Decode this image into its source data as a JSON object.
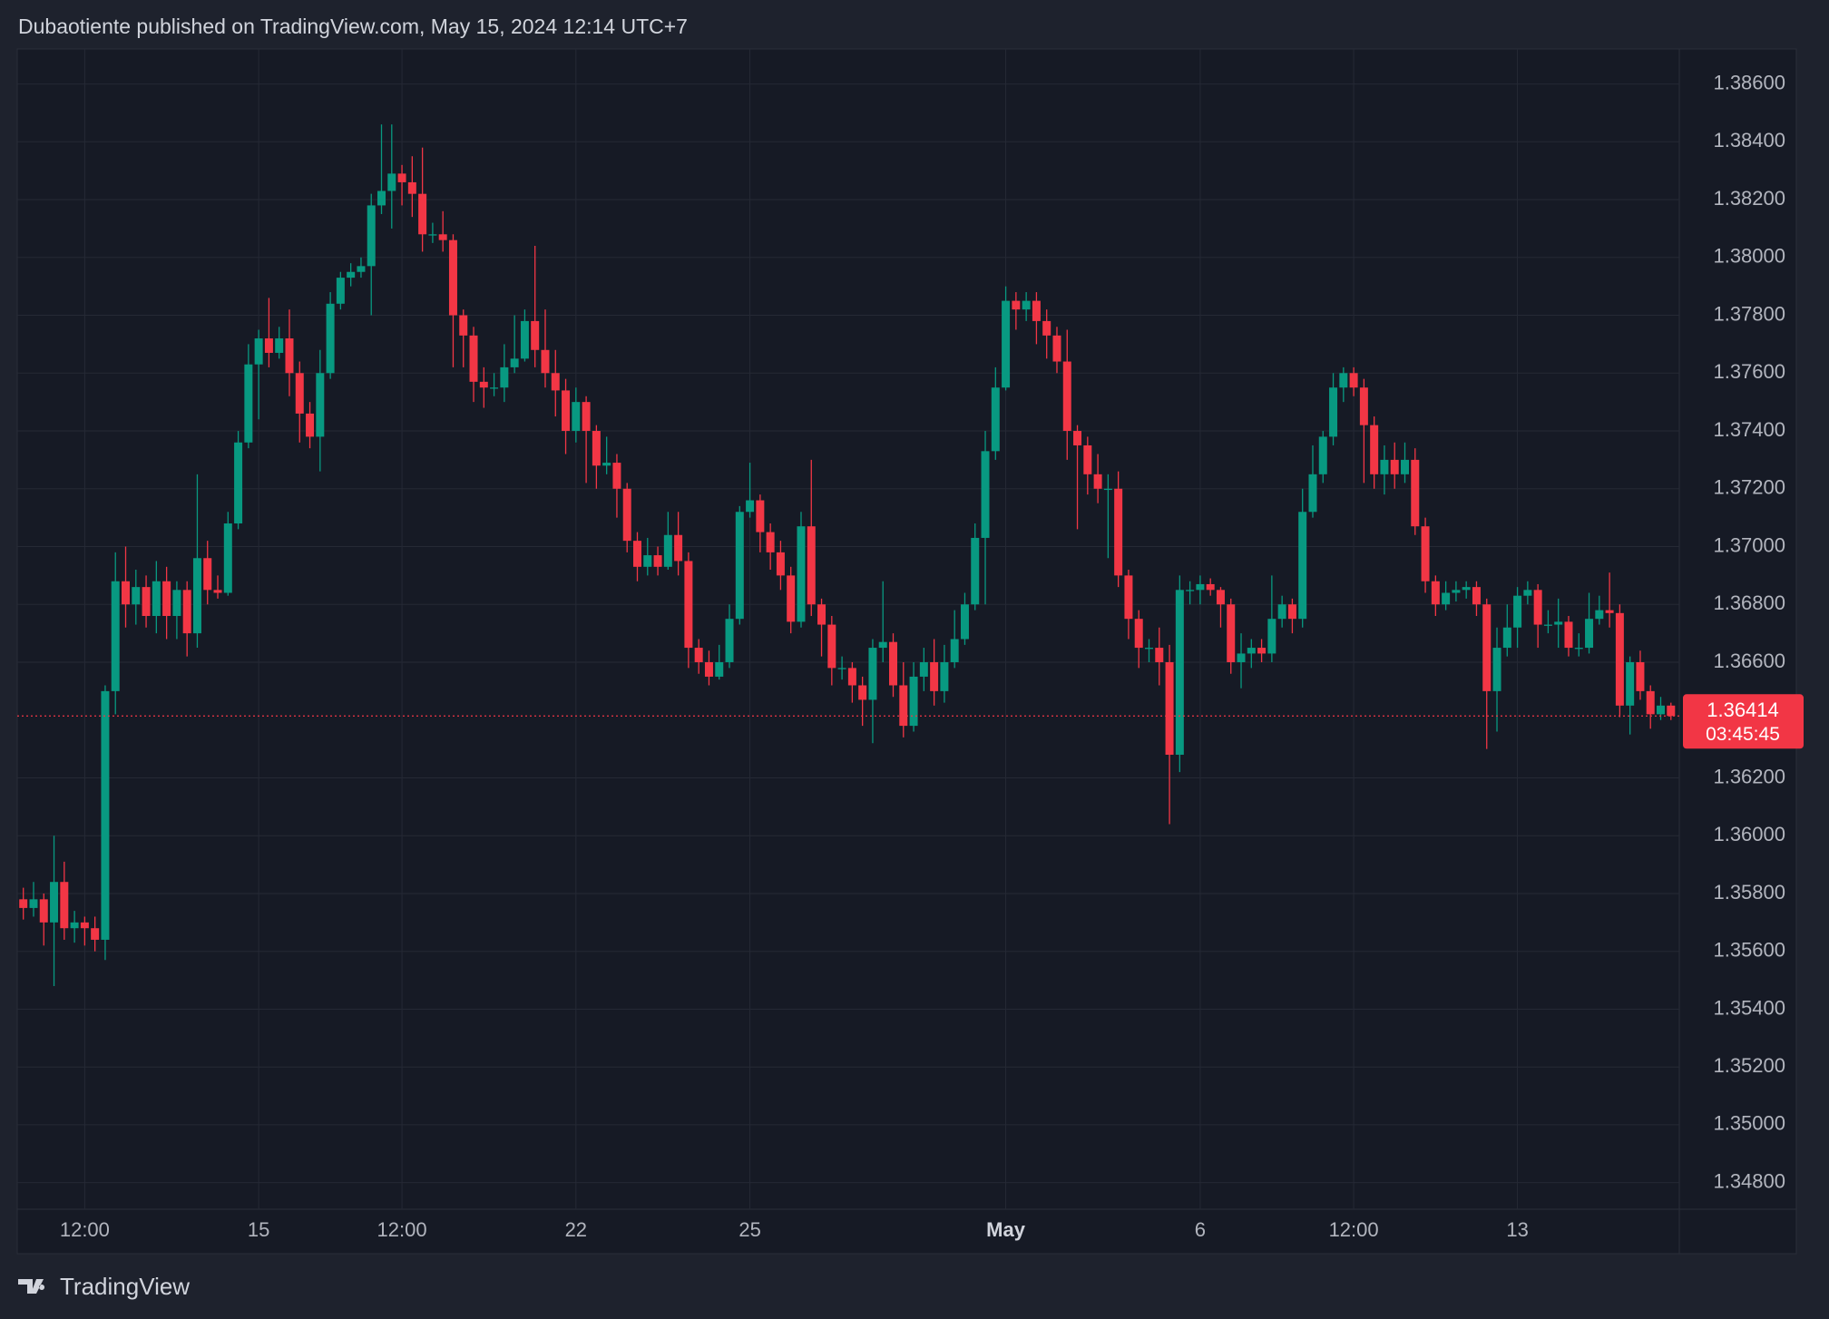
{
  "chart_data": {
    "type": "candlestick",
    "title": "Dubaotiente published on TradingView.com, May 15, 2024 12:14 UTC+7",
    "source": "TradingView",
    "countdown": "03:45:45",
    "up_color": "#089981",
    "down_color": "#f23645",
    "grid": true,
    "ylim": [
      1.34708,
      1.38721
    ],
    "yticks": [
      {
        "value": 1.386,
        "label": "1.38600"
      },
      {
        "value": 1.384,
        "label": "1.38400"
      },
      {
        "value": 1.382,
        "label": "1.38200"
      },
      {
        "value": 1.38,
        "label": "1.38000"
      },
      {
        "value": 1.378,
        "label": "1.37800"
      },
      {
        "value": 1.376,
        "label": "1.37600"
      },
      {
        "value": 1.374,
        "label": "1.37400"
      },
      {
        "value": 1.372,
        "label": "1.37200"
      },
      {
        "value": 1.37,
        "label": "1.37000"
      },
      {
        "value": 1.368,
        "label": "1.36800"
      },
      {
        "value": 1.366,
        "label": "1.36600"
      },
      {
        "value": 1.362,
        "label": "1.36200"
      },
      {
        "value": 1.36,
        "label": "1.36000"
      },
      {
        "value": 1.358,
        "label": "1.35800"
      },
      {
        "value": 1.356,
        "label": "1.35600"
      },
      {
        "value": 1.354,
        "label": "1.35400"
      },
      {
        "value": 1.352,
        "label": "1.35200"
      },
      {
        "value": 1.35,
        "label": "1.35000"
      },
      {
        "value": 1.348,
        "label": "1.34800"
      }
    ],
    "categories": [
      null,
      null,
      null,
      null,
      null,
      null,
      "12:00",
      null,
      null,
      null,
      null,
      null,
      null,
      null,
      null,
      null,
      null,
      null,
      null,
      null,
      null,
      null,
      null,
      "15",
      null,
      null,
      null,
      null,
      null,
      null,
      null,
      null,
      null,
      null,
      null,
      null,
      null,
      "12:00",
      null,
      null,
      null,
      null,
      null,
      null,
      null,
      null,
      null,
      null,
      null,
      null,
      null,
      null,
      null,
      null,
      "22",
      null,
      null,
      null,
      null,
      null,
      null,
      null,
      null,
      null,
      null,
      null,
      null,
      null,
      null,
      null,
      null,
      "25",
      null,
      null,
      null,
      null,
      null,
      null,
      null,
      null,
      null,
      null,
      null,
      null,
      null,
      null,
      null,
      null,
      null,
      null,
      null,
      null,
      null,
      null,
      null,
      null,
      "May",
      null,
      null,
      null,
      null,
      null,
      null,
      null,
      null,
      null,
      null,
      null,
      null,
      null,
      null,
      null,
      null,
      null,
      null,
      "6",
      null,
      null,
      null,
      null,
      null,
      null,
      null,
      null,
      null,
      null,
      null,
      null,
      null,
      null,
      "12:00",
      null,
      null,
      null,
      null,
      null,
      null,
      null,
      null,
      null,
      null,
      null,
      null,
      null,
      null,
      null,
      "13",
      null,
      null,
      null,
      null,
      null,
      null,
      null,
      null,
      null,
      null,
      null,
      null,
      null,
      null,
      null
    ],
    "open": [
      1.3578,
      1.3575,
      1.3578,
      1.357,
      1.3584,
      1.3568,
      1.357,
      1.3568,
      1.3564,
      1.365,
      1.3688,
      1.368,
      1.3686,
      1.3676,
      1.3688,
      1.3676,
      1.3685,
      1.367,
      1.3696,
      1.3685,
      1.3684,
      1.3708,
      1.3736,
      1.3763,
      1.3772,
      1.3767,
      1.3772,
      1.376,
      1.3746,
      1.3738,
      1.376,
      1.3784,
      1.3793,
      1.3795,
      1.3797,
      1.3818,
      1.3823,
      1.3829,
      1.3826,
      1.3822,
      1.3808,
      1.3808,
      1.3806,
      1.378,
      1.3773,
      1.3757,
      1.3755,
      1.3755,
      1.3762,
      1.3765,
      1.3778,
      1.3768,
      1.376,
      1.3754,
      1.374,
      1.375,
      1.374,
      1.3728,
      1.3729,
      1.372,
      1.3702,
      1.3693,
      1.3697,
      1.3693,
      1.3704,
      1.3695,
      1.3665,
      1.366,
      1.3655,
      1.366,
      1.3675,
      1.3712,
      1.3716,
      1.3705,
      1.3698,
      1.369,
      1.3674,
      1.3707,
      1.368,
      1.3673,
      1.3658,
      1.3658,
      1.3652,
      1.3647,
      1.3665,
      1.3667,
      1.3652,
      1.3638,
      1.3655,
      1.366,
      1.365,
      1.366,
      1.3668,
      1.368,
      1.3703,
      1.3733,
      1.3755,
      1.3785,
      1.3782,
      1.3785,
      1.3778,
      1.3773,
      1.3764,
      1.374,
      1.3735,
      1.3725,
      1.372,
      1.372,
      1.369,
      1.3675,
      1.3665,
      1.3665,
      1.366,
      1.3628,
      1.3685,
      1.3685,
      1.3687,
      1.3685,
      1.368,
      1.366,
      1.3663,
      1.3665,
      1.3663,
      1.3675,
      1.368,
      1.3675,
      1.3712,
      1.3725,
      1.3738,
      1.3755,
      1.376,
      1.3755,
      1.3742,
      1.3725,
      1.373,
      1.3725,
      1.373,
      1.3707,
      1.3688,
      1.368,
      1.3684,
      1.3685,
      1.3686,
      1.368,
      1.365,
      1.3665,
      1.3672,
      1.3683,
      1.3685,
      1.3673,
      1.3673,
      1.3674,
      1.3665,
      1.3665,
      1.3675,
      1.3678,
      1.3677,
      1.3645,
      1.366,
      1.365,
      1.3642,
      1.3645
    ],
    "high": [
      1.3582,
      1.3584,
      1.358,
      1.36,
      1.3591,
      1.3574,
      1.3572,
      1.3572,
      1.3652,
      1.3698,
      1.37,
      1.3692,
      1.369,
      1.3695,
      1.3693,
      1.3688,
      1.3688,
      1.3725,
      1.3702,
      1.369,
      1.3712,
      1.374,
      1.377,
      1.3775,
      1.3786,
      1.3776,
      1.3782,
      1.3764,
      1.375,
      1.3768,
      1.3788,
      1.3795,
      1.3798,
      1.38,
      1.3822,
      1.3846,
      1.3846,
      1.3832,
      1.3835,
      1.3838,
      1.3812,
      1.3816,
      1.3808,
      1.3782,
      1.3776,
      1.3762,
      1.376,
      1.377,
      1.378,
      1.3782,
      1.3804,
      1.3782,
      1.3768,
      1.3758,
      1.3755,
      1.3752,
      1.3742,
      1.3738,
      1.3732,
      1.3722,
      1.3705,
      1.3703,
      1.37,
      1.3712,
      1.3712,
      1.3698,
      1.3668,
      1.3664,
      1.3666,
      1.368,
      1.3714,
      1.3729,
      1.3718,
      1.3708,
      1.3702,
      1.3693,
      1.3712,
      1.373,
      1.3682,
      1.3676,
      1.3662,
      1.366,
      1.3655,
      1.3668,
      1.3688,
      1.367,
      1.366,
      1.366,
      1.3665,
      1.3668,
      1.3666,
      1.3678,
      1.3684,
      1.3708,
      1.374,
      1.3762,
      1.379,
      1.3788,
      1.3788,
      1.3788,
      1.3782,
      1.3776,
      1.3775,
      1.3742,
      1.3738,
      1.3732,
      1.3725,
      1.3726,
      1.3692,
      1.3678,
      1.3668,
      1.3672,
      1.3666,
      1.369,
      1.3688,
      1.369,
      1.3689,
      1.3686,
      1.3682,
      1.367,
      1.3668,
      1.3668,
      1.369,
      1.3683,
      1.3682,
      1.372,
      1.3735,
      1.374,
      1.376,
      1.3762,
      1.3762,
      1.3758,
      1.3745,
      1.3735,
      1.3736,
      1.3736,
      1.3734,
      1.371,
      1.369,
      1.3688,
      1.3688,
      1.3688,
      1.3688,
      1.3682,
      1.3672,
      1.368,
      1.3686,
      1.3688,
      1.3687,
      1.3678,
      1.3682,
      1.3676,
      1.367,
      1.3684,
      1.3683,
      1.3691,
      1.368,
      1.3662,
      1.3664,
      1.3652,
      1.3648,
      1.3646
    ],
    "low": [
      1.3571,
      1.3572,
      1.3562,
      1.3548,
      1.3564,
      1.3563,
      1.3562,
      1.356,
      1.3557,
      1.3642,
      1.3672,
      1.3673,
      1.3672,
      1.367,
      1.3668,
      1.3668,
      1.3662,
      1.3665,
      1.368,
      1.3682,
      1.3683,
      1.3706,
      1.3734,
      1.3744,
      1.3762,
      1.3765,
      1.3752,
      1.3736,
      1.3734,
      1.3726,
      1.3758,
      1.3782,
      1.379,
      1.3793,
      1.378,
      1.3815,
      1.381,
      1.3818,
      1.3814,
      1.3802,
      1.3805,
      1.3802,
      1.3762,
      1.3762,
      1.375,
      1.3748,
      1.3752,
      1.375,
      1.376,
      1.3764,
      1.3762,
      1.3755,
      1.3745,
      1.3732,
      1.3736,
      1.3722,
      1.372,
      1.3725,
      1.371,
      1.3698,
      1.3688,
      1.369,
      1.369,
      1.3692,
      1.369,
      1.3658,
      1.3656,
      1.3652,
      1.3654,
      1.3658,
      1.3673,
      1.371,
      1.3698,
      1.3692,
      1.3685,
      1.367,
      1.3672,
      1.3676,
      1.3662,
      1.3652,
      1.3654,
      1.3646,
      1.3638,
      1.3632,
      1.366,
      1.3648,
      1.3634,
      1.3636,
      1.365,
      1.3645,
      1.3646,
      1.3658,
      1.3666,
      1.3678,
      1.368,
      1.373,
      1.3754,
      1.3775,
      1.3778,
      1.377,
      1.3765,
      1.376,
      1.373,
      1.3706,
      1.3718,
      1.3715,
      1.3696,
      1.3686,
      1.3668,
      1.3658,
      1.366,
      1.3652,
      1.3604,
      1.3622,
      1.368,
      1.368,
      1.3683,
      1.3672,
      1.3656,
      1.3651,
      1.3658,
      1.366,
      1.366,
      1.3672,
      1.367,
      1.3672,
      1.371,
      1.3722,
      1.3735,
      1.375,
      1.3752,
      1.3722,
      1.372,
      1.3718,
      1.372,
      1.3722,
      1.3704,
      1.3684,
      1.3676,
      1.3678,
      1.3681,
      1.3682,
      1.3676,
      1.363,
      1.3636,
      1.3662,
      1.3665,
      1.368,
      1.3665,
      1.367,
      1.3665,
      1.3662,
      1.3662,
      1.3663,
      1.3673,
      1.3672,
      1.3641,
      1.3635,
      1.3647,
      1.3637,
      1.364,
      1.364
    ],
    "close": [
      1.3575,
      1.3578,
      1.357,
      1.3584,
      1.3568,
      1.357,
      1.3568,
      1.3564,
      1.365,
      1.3688,
      1.368,
      1.3686,
      1.3676,
      1.3688,
      1.3676,
      1.3685,
      1.367,
      1.3696,
      1.3685,
      1.3684,
      1.3708,
      1.3736,
      1.3763,
      1.3772,
      1.3767,
      1.3772,
      1.376,
      1.3746,
      1.3738,
      1.376,
      1.3784,
      1.3793,
      1.3795,
      1.3797,
      1.3818,
      1.3823,
      1.3829,
      1.3826,
      1.3822,
      1.3808,
      1.3808,
      1.3806,
      1.378,
      1.3773,
      1.3757,
      1.3755,
      1.3755,
      1.3762,
      1.3765,
      1.3778,
      1.3768,
      1.376,
      1.3754,
      1.374,
      1.375,
      1.374,
      1.3728,
      1.3729,
      1.372,
      1.3702,
      1.3693,
      1.3697,
      1.3693,
      1.3704,
      1.3695,
      1.3665,
      1.366,
      1.3655,
      1.366,
      1.3675,
      1.3712,
      1.3716,
      1.3705,
      1.3698,
      1.369,
      1.3674,
      1.3707,
      1.368,
      1.3673,
      1.3658,
      1.3658,
      1.3652,
      1.3647,
      1.3665,
      1.3667,
      1.3652,
      1.3638,
      1.3655,
      1.366,
      1.365,
      1.366,
      1.3668,
      1.368,
      1.3703,
      1.3733,
      1.3755,
      1.3785,
      1.3782,
      1.3785,
      1.3778,
      1.3773,
      1.3764,
      1.374,
      1.3735,
      1.3725,
      1.372,
      1.372,
      1.369,
      1.3675,
      1.3665,
      1.3665,
      1.366,
      1.3628,
      1.3685,
      1.3685,
      1.3687,
      1.3685,
      1.368,
      1.366,
      1.3663,
      1.3665,
      1.3663,
      1.3675,
      1.368,
      1.3675,
      1.3712,
      1.3725,
      1.3738,
      1.3755,
      1.376,
      1.3755,
      1.3742,
      1.3725,
      1.373,
      1.3725,
      1.373,
      1.3707,
      1.3688,
      1.368,
      1.3684,
      1.3685,
      1.3686,
      1.368,
      1.365,
      1.3665,
      1.3672,
      1.3683,
      1.3685,
      1.3673,
      1.3673,
      1.3674,
      1.3665,
      1.3665,
      1.3675,
      1.3678,
      1.3677,
      1.3645,
      1.366,
      1.365,
      1.3642,
      1.3645,
      1.36414
    ]
  }
}
